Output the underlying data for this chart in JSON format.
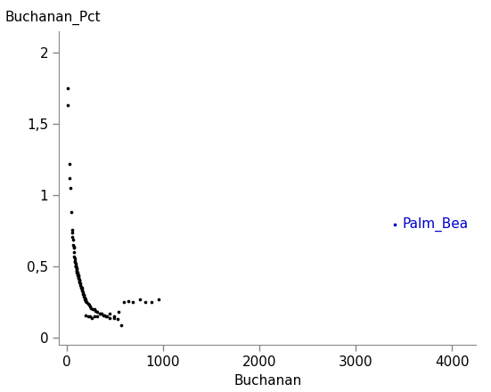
{
  "title": "",
  "xlabel": "Buchanan",
  "ylabel": "Buchanan_Pct",
  "xlim": [
    -80,
    4250
  ],
  "ylim": [
    -0.05,
    2.15
  ],
  "xticks": [
    0,
    1000,
    2000,
    3000,
    4000
  ],
  "yticks": [
    0,
    0.5,
    1.0,
    1.5,
    2.0
  ],
  "ytick_labels": [
    "0",
    "0,5",
    "1",
    "1,5",
    "2"
  ],
  "background_color": "#ffffff",
  "scatter_color": "#000000",
  "highlight_color": "#0000cc",
  "highlight_label": "Palm_Bea",
  "highlight_x": 3407,
  "highlight_y": 0.796,
  "points": [
    [
      9,
      1.75
    ],
    [
      14,
      1.63
    ],
    [
      28,
      1.22
    ],
    [
      33,
      1.12
    ],
    [
      35,
      1.05
    ],
    [
      46,
      0.88
    ],
    [
      53,
      0.76
    ],
    [
      55,
      0.74
    ],
    [
      57,
      0.71
    ],
    [
      65,
      0.69
    ],
    [
      68,
      0.65
    ],
    [
      72,
      0.64
    ],
    [
      74,
      0.63
    ],
    [
      76,
      0.6
    ],
    [
      78,
      0.57
    ],
    [
      82,
      0.56
    ],
    [
      85,
      0.54
    ],
    [
      88,
      0.53
    ],
    [
      90,
      0.52
    ],
    [
      93,
      0.51
    ],
    [
      95,
      0.5
    ],
    [
      96,
      0.5
    ],
    [
      98,
      0.5
    ],
    [
      100,
      0.49
    ],
    [
      102,
      0.48
    ],
    [
      104,
      0.47
    ],
    [
      106,
      0.47
    ],
    [
      108,
      0.46
    ],
    [
      110,
      0.46
    ],
    [
      112,
      0.45
    ],
    [
      115,
      0.44
    ],
    [
      118,
      0.44
    ],
    [
      120,
      0.43
    ],
    [
      123,
      0.42
    ],
    [
      126,
      0.42
    ],
    [
      128,
      0.41
    ],
    [
      130,
      0.4
    ],
    [
      133,
      0.4
    ],
    [
      136,
      0.39
    ],
    [
      140,
      0.38
    ],
    [
      143,
      0.37
    ],
    [
      146,
      0.36
    ],
    [
      150,
      0.35
    ],
    [
      155,
      0.35
    ],
    [
      158,
      0.34
    ],
    [
      162,
      0.33
    ],
    [
      165,
      0.32
    ],
    [
      170,
      0.31
    ],
    [
      175,
      0.3
    ],
    [
      178,
      0.3
    ],
    [
      182,
      0.29
    ],
    [
      186,
      0.28
    ],
    [
      190,
      0.27
    ],
    [
      195,
      0.27
    ],
    [
      200,
      0.26
    ],
    [
      205,
      0.25
    ],
    [
      210,
      0.25
    ],
    [
      220,
      0.24
    ],
    [
      230,
      0.23
    ],
    [
      240,
      0.22
    ],
    [
      255,
      0.21
    ],
    [
      270,
      0.2
    ],
    [
      285,
      0.2
    ],
    [
      300,
      0.19
    ],
    [
      320,
      0.18
    ],
    [
      340,
      0.17
    ],
    [
      360,
      0.17
    ],
    [
      390,
      0.16
    ],
    [
      420,
      0.15
    ],
    [
      450,
      0.14
    ],
    [
      490,
      0.14
    ],
    [
      530,
      0.13
    ],
    [
      570,
      0.09
    ],
    [
      200,
      0.16
    ],
    [
      220,
      0.15
    ],
    [
      240,
      0.15
    ],
    [
      260,
      0.14
    ],
    [
      290,
      0.15
    ],
    [
      320,
      0.15
    ],
    [
      350,
      0.17
    ],
    [
      380,
      0.16
    ],
    [
      410,
      0.15
    ],
    [
      450,
      0.17
    ],
    [
      490,
      0.15
    ],
    [
      540,
      0.18
    ],
    [
      590,
      0.25
    ],
    [
      640,
      0.26
    ],
    [
      690,
      0.25
    ],
    [
      760,
      0.27
    ],
    [
      820,
      0.25
    ],
    [
      880,
      0.25
    ],
    [
      950,
      0.27
    ]
  ],
  "marker_size": 7,
  "font_size": 11,
  "tick_font_size": 11,
  "figsize": [
    5.51,
    4.4
  ],
  "dpi": 100
}
